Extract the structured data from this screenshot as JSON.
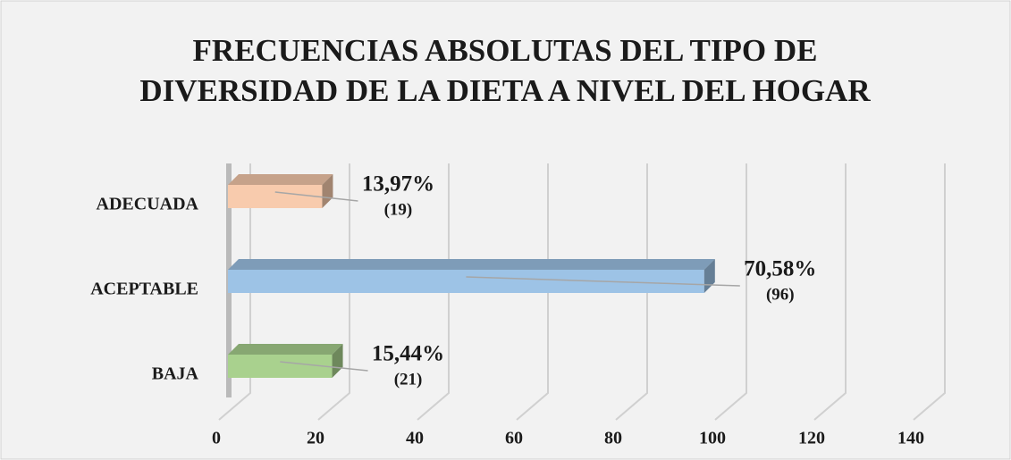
{
  "chart_data": {
    "type": "bar",
    "orientation": "horizontal",
    "title": "FRECUENCIAS ABSOLUTAS DEL TIPO DE DIVERSIDAD DE LA DIETA A NIVEL DEL HOGAR",
    "categories": [
      "ADECUADA",
      "ACEPTABLE",
      "BAJA"
    ],
    "values": [
      19,
      96,
      21
    ],
    "value_labels": [
      "(19)",
      "(96)",
      "(21)"
    ],
    "percent_values": [
      13.97,
      70.58,
      15.44
    ],
    "percent_labels": [
      "13,97%",
      "70,58%",
      "15,44%"
    ],
    "colors": [
      "#f8cbad",
      "#9dc3e6",
      "#a9d18e"
    ],
    "xlim": [
      0,
      140
    ],
    "xticks": [
      0,
      20,
      40,
      60,
      80,
      100,
      120,
      140
    ],
    "grid": true
  }
}
